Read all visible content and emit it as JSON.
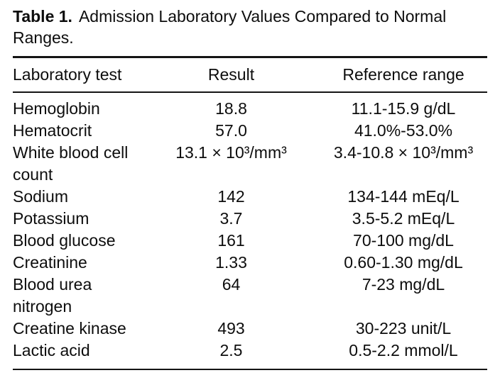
{
  "table": {
    "label": "Table 1.",
    "caption": "Admission Laboratory Values Compared to Normal Ranges.",
    "columns": [
      "Laboratory test",
      "Result",
      "Reference range"
    ],
    "rows": [
      {
        "test": "Hemoglobin",
        "result": "18.8",
        "reference": "11.1-15.9 g/dL"
      },
      {
        "test": "Hematocrit",
        "result": "57.0",
        "reference": "41.0%-53.0%"
      },
      {
        "test": "White blood cell count",
        "result": "13.1 × 10³/mm³",
        "reference": "3.4-10.8 × 10³/mm³"
      },
      {
        "test": "Sodium",
        "result": "142",
        "reference": "134-144 mEq/L"
      },
      {
        "test": "Potassium",
        "result": "3.7",
        "reference": "3.5-5.2 mEq/L"
      },
      {
        "test": "Blood glucose",
        "result": "161",
        "reference": "70-100 mg/dL"
      },
      {
        "test": "Creatinine",
        "result": "1.33",
        "reference": "0.60-1.30 mg/dL"
      },
      {
        "test": "Blood urea nitrogen",
        "result": "64",
        "reference": "7-23 mg/dL"
      },
      {
        "test": "Creatine kinase",
        "result": "493",
        "reference": "30-223 unit/L"
      },
      {
        "test": "Lactic acid",
        "result": "2.5",
        "reference": "0.5-2.2 mmol/L"
      }
    ]
  },
  "colors": {
    "text": "#0d0d0d",
    "background": "#ffffff",
    "rule": "#141414"
  }
}
